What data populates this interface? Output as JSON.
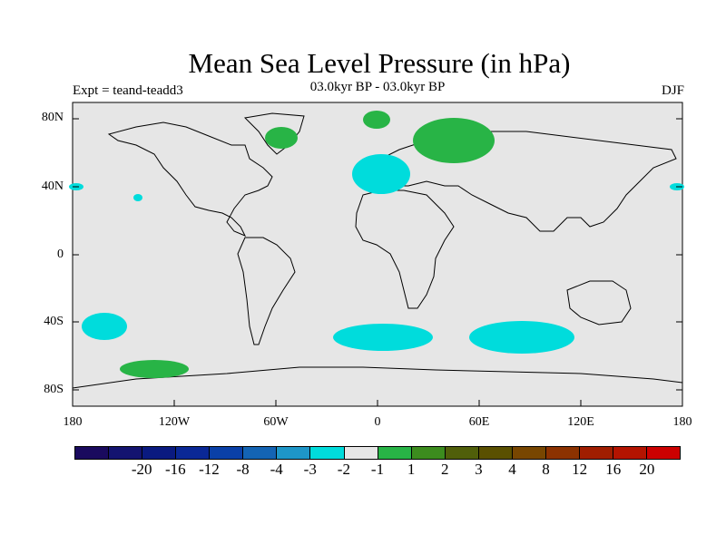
{
  "title": "Mean Sea Level Pressure (in hPa)",
  "subtitle": "03.0kyr BP - 03.0kyr BP",
  "experiment": "Expt = teand-teadd3",
  "season": "DJF",
  "y_ticks": [
    "80N",
    "40N",
    "0",
    "40S",
    "80S"
  ],
  "x_ticks": [
    "180",
    "120W",
    "60W",
    "0",
    "60E",
    "120E",
    "180"
  ],
  "colorbar": {
    "colors": [
      "#1a0a5e",
      "#141470",
      "#0a1a80",
      "#0a2896",
      "#0a40a8",
      "#1464b4",
      "#1e96c8",
      "#00dcdc",
      "#e6e6e6",
      "#28b446",
      "#3c8c1e",
      "#505f0a",
      "#5a5000",
      "#784600",
      "#8c3200",
      "#a01e00",
      "#b41400",
      "#cc0000"
    ],
    "labels": [
      "-20",
      "-16",
      "-12",
      "-8",
      "-4",
      "-3",
      "-2",
      "-1",
      "1",
      "2",
      "3",
      "4",
      "8",
      "12",
      "16",
      "20"
    ]
  },
  "colors": {
    "ocean": "#e6e6e6",
    "positive": "#28b446",
    "negative": "#00dcdc"
  }
}
